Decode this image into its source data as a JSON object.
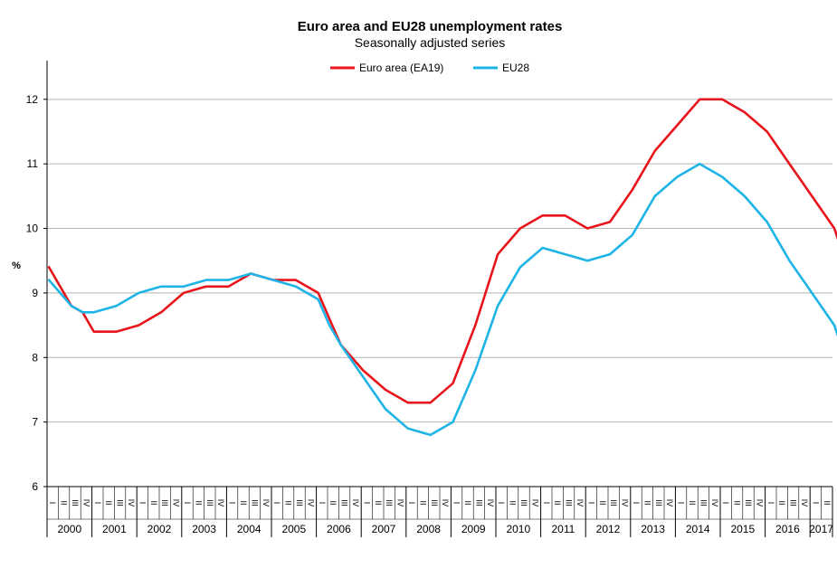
{
  "chart_data": {
    "type": "line",
    "title": "Euro area and EU28 unemployment rates",
    "subtitle": "Seasonally adjusted series",
    "ylabel": "%",
    "ylim": [
      6,
      12.6
    ],
    "yticks": [
      "6",
      "7",
      "8",
      "9",
      "10",
      "11",
      "12"
    ],
    "grid": "horizontal",
    "legend_position": "top-center",
    "x_period": "monthly, 2000-01 to 2017-02",
    "quarter_labels": [
      "I",
      "II",
      "III",
      "IV"
    ],
    "years": [
      "2000",
      "2001",
      "2002",
      "2003",
      "2004",
      "2005",
      "2006",
      "2007",
      "2008",
      "2009",
      "2010",
      "2011",
      "2012",
      "2013",
      "2014",
      "2015",
      "2016",
      "2017"
    ],
    "x_anchor_months": [
      0,
      3,
      6,
      9,
      12,
      18,
      24,
      30,
      36,
      42,
      48,
      54,
      60,
      66,
      72,
      75,
      78,
      84,
      90,
      96,
      102,
      108,
      114,
      120,
      126,
      132,
      138,
      144,
      150,
      156,
      162,
      168,
      174,
      180,
      186,
      192,
      198,
      204,
      210,
      214
    ],
    "series": [
      {
        "name": "Euro area (EA19)",
        "color": "#e8141c",
        "values": [
          9.4,
          9.1,
          8.8,
          8.7,
          8.4,
          8.4,
          8.5,
          8.7,
          9.0,
          9.1,
          9.1,
          9.3,
          9.2,
          9.2,
          9.0,
          8.6,
          8.2,
          7.8,
          7.5,
          7.3,
          7.3,
          7.6,
          8.5,
          9.6,
          10.0,
          10.2,
          10.2,
          10.0,
          10.1,
          10.6,
          11.2,
          11.6,
          12.0,
          12.0,
          11.8,
          11.5,
          11.0,
          10.5,
          10.0,
          9.3
        ]
      },
      {
        "name": "EU28",
        "color": "#1eb4e6",
        "values": [
          9.2,
          9.0,
          8.8,
          8.7,
          8.7,
          8.8,
          9.0,
          9.1,
          9.1,
          9.2,
          9.2,
          9.3,
          9.2,
          9.1,
          8.9,
          8.5,
          8.2,
          7.7,
          7.2,
          6.9,
          6.8,
          7.0,
          7.8,
          8.8,
          9.4,
          9.7,
          9.6,
          9.5,
          9.6,
          9.9,
          10.5,
          10.8,
          11.0,
          10.8,
          10.5,
          10.1,
          9.5,
          9.0,
          8.5,
          7.8
        ]
      }
    ]
  }
}
